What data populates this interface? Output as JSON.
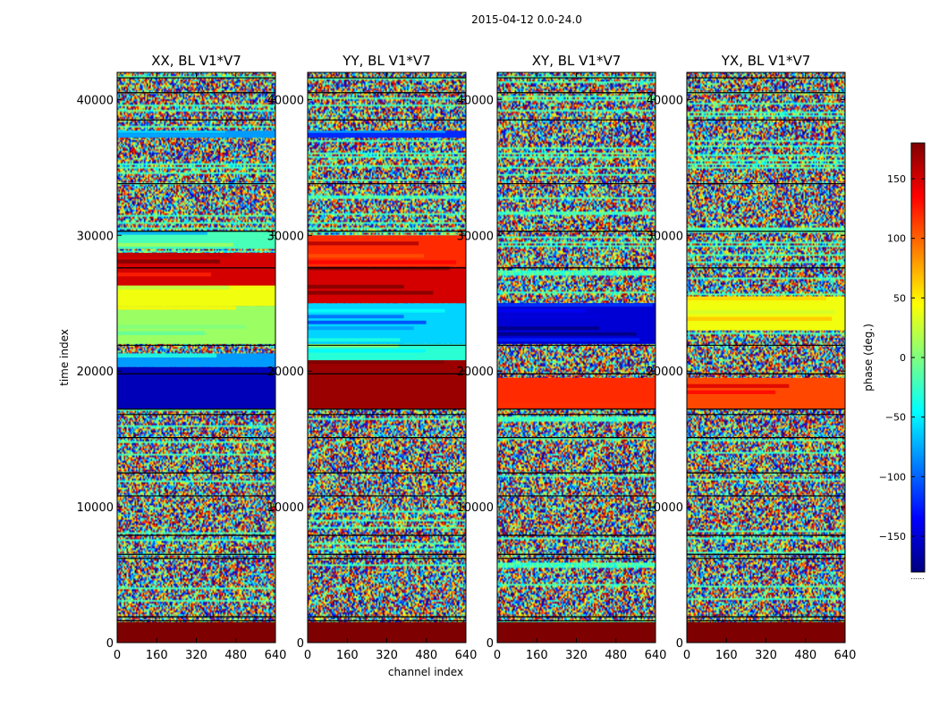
{
  "chart_data": {
    "type": "heatmap",
    "suptitle": "2015-04-12 0.0-24.0",
    "xlabel": "channel index",
    "ylabel": "time index",
    "xlim": [
      0,
      640
    ],
    "ylim": [
      0,
      42000
    ],
    "xticks": [
      0,
      160,
      320,
      480,
      640
    ],
    "yticks": [
      0,
      10000,
      20000,
      30000,
      40000
    ],
    "colorbar": {
      "label": "phase (deg.)",
      "range": [
        -180,
        180
      ],
      "ticks": [
        150,
        100,
        50,
        0,
        -50,
        -100,
        -150
      ],
      "tick_labels": [
        "150",
        "100",
        "50",
        "0",
        "−50",
        "−100",
        "−150"
      ],
      "colormap": "jet",
      "colors": [
        "#00007f",
        "#0000ff",
        "#007fff",
        "#00ffff",
        "#7fff7f",
        "#ffff00",
        "#ff7f00",
        "#ff0000",
        "#7f0000"
      ],
      "below_text": "......"
    },
    "panels": [
      {
        "title": "XX, BL V1*V7",
        "blocks": [
          {
            "y0": 0,
            "y1": 1500,
            "phase": 180
          },
          {
            "y0": 17200,
            "y1": 20300,
            "phase": -160
          },
          {
            "y0": 20300,
            "y1": 21300,
            "phase": -80
          },
          {
            "y0": 22000,
            "y1": 24800,
            "phase": 10
          },
          {
            "y0": 24800,
            "y1": 26300,
            "phase": 40
          },
          {
            "y0": 26300,
            "y1": 28700,
            "phase": 150
          },
          {
            "y0": 29000,
            "y1": 30300,
            "phase": -20
          },
          {
            "y0": 37200,
            "y1": 37700,
            "phase": -80
          }
        ]
      },
      {
        "title": "YY, BL V1*V7",
        "blocks": [
          {
            "y0": 0,
            "y1": 1500,
            "phase": 180
          },
          {
            "y0": 17200,
            "y1": 20800,
            "phase": 170
          },
          {
            "y0": 20800,
            "y1": 22000,
            "phase": -30
          },
          {
            "y0": 22000,
            "y1": 25000,
            "phase": -60
          },
          {
            "y0": 25000,
            "y1": 27700,
            "phase": 150
          },
          {
            "y0": 27700,
            "y1": 30000,
            "phase": 120
          },
          {
            "y0": 37200,
            "y1": 37700,
            "phase": -120
          }
        ]
      },
      {
        "title": "XY, BL V1*V7",
        "blocks": [
          {
            "y0": 0,
            "y1": 1500,
            "phase": 180
          },
          {
            "y0": 22000,
            "y1": 25000,
            "phase": -150
          },
          {
            "y0": 17200,
            "y1": 19500,
            "phase": 120
          }
        ]
      },
      {
        "title": "YX, BL V1*V7",
        "blocks": [
          {
            "y0": 0,
            "y1": 1500,
            "phase": 180
          },
          {
            "y0": 23000,
            "y1": 25500,
            "phase": 40
          },
          {
            "y0": 17200,
            "y1": 19500,
            "phase": 110
          }
        ]
      }
    ]
  }
}
